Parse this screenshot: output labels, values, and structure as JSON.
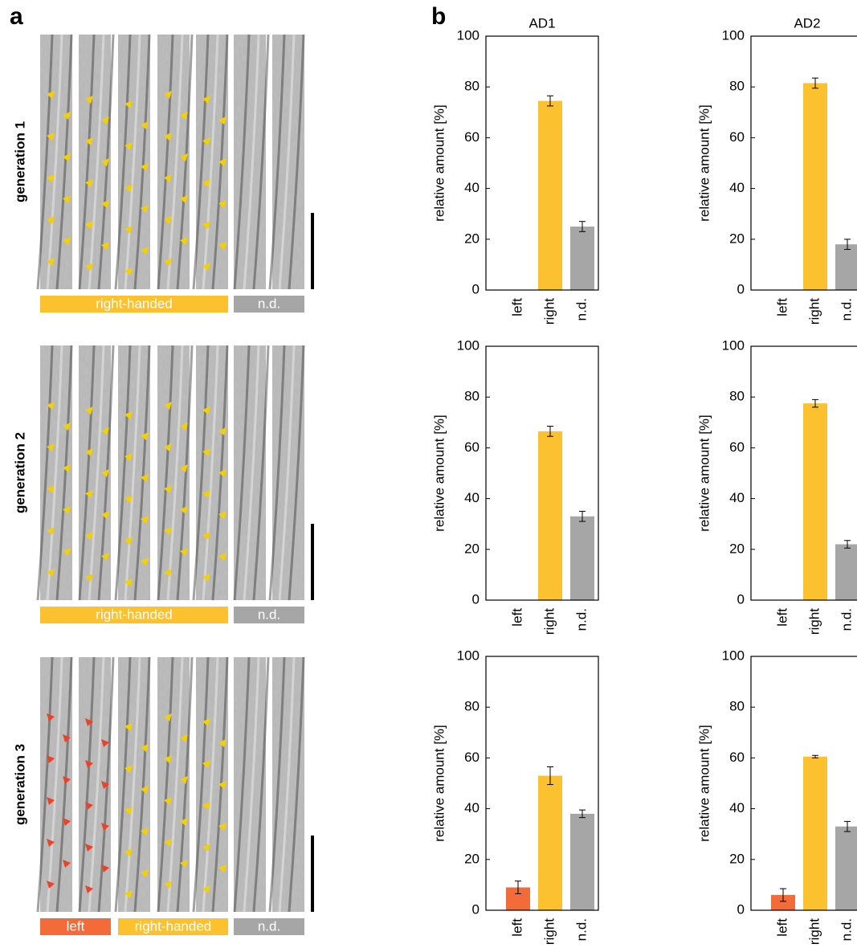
{
  "panel_a": {
    "label": "a",
    "rows": [
      {
        "label": "generation 1",
        "bands": [
          "right-handed",
          "n.d."
        ]
      },
      {
        "label": "generation 2",
        "bands": [
          "right-handed",
          "n.d."
        ]
      },
      {
        "label": "generation 3",
        "bands": [
          "left",
          "right-handed",
          "n.d."
        ]
      }
    ]
  },
  "panel_b": {
    "label": "b"
  },
  "chart_data": [
    {
      "type": "bar",
      "title": "AD1",
      "ylabel": "relative amount [%]",
      "categories": [
        "left",
        "right",
        "n.d."
      ],
      "values": [
        0,
        74.5,
        25
      ],
      "errors": [
        0,
        2,
        2
      ],
      "colors": [
        "#f26b38",
        "#fcc12e",
        "#a6a6a6"
      ],
      "ylim": [
        0,
        100
      ],
      "yticks": [
        0,
        20,
        40,
        60,
        80,
        100
      ]
    },
    {
      "type": "bar",
      "title": "AD2",
      "ylabel": "relative amount [%]",
      "categories": [
        "left",
        "right",
        "n.d."
      ],
      "values": [
        0,
        81.5,
        18
      ],
      "errors": [
        0,
        2,
        2
      ],
      "colors": [
        "#f26b38",
        "#fcc12e",
        "#a6a6a6"
      ],
      "ylim": [
        0,
        100
      ],
      "yticks": [
        0,
        20,
        40,
        60,
        80,
        100
      ]
    },
    {
      "type": "bar",
      "ylabel": "relative amount [%]",
      "categories": [
        "left",
        "right",
        "n.d."
      ],
      "values": [
        0,
        66.5,
        33
      ],
      "errors": [
        0,
        2,
        2
      ],
      "colors": [
        "#f26b38",
        "#fcc12e",
        "#a6a6a6"
      ],
      "ylim": [
        0,
        100
      ],
      "yticks": [
        0,
        20,
        40,
        60,
        80,
        100
      ]
    },
    {
      "type": "bar",
      "ylabel": "relative amount [%]",
      "categories": [
        "left",
        "right",
        "n.d."
      ],
      "values": [
        0,
        77.5,
        22
      ],
      "errors": [
        0,
        1.5,
        1.5
      ],
      "colors": [
        "#f26b38",
        "#fcc12e",
        "#a6a6a6"
      ],
      "ylim": [
        0,
        100
      ],
      "yticks": [
        0,
        20,
        40,
        60,
        80,
        100
      ]
    },
    {
      "type": "bar",
      "ylabel": "relative amount [%]",
      "categories": [
        "left",
        "right",
        "n.d."
      ],
      "values": [
        9,
        53,
        38
      ],
      "errors": [
        2.5,
        3.5,
        1.5
      ],
      "colors": [
        "#f26b38",
        "#fcc12e",
        "#a6a6a6"
      ],
      "ylim": [
        0,
        100
      ],
      "yticks": [
        0,
        20,
        40,
        60,
        80,
        100
      ]
    },
    {
      "type": "bar",
      "ylabel": "relative amount [%]",
      "categories": [
        "left",
        "right",
        "n.d."
      ],
      "values": [
        6,
        60.5,
        33
      ],
      "errors": [
        2.5,
        0.5,
        2
      ],
      "colors": [
        "#f26b38",
        "#fcc12e",
        "#a6a6a6"
      ],
      "ylim": [
        0,
        100
      ],
      "yticks": [
        0,
        20,
        40,
        60,
        80,
        100
      ]
    }
  ]
}
